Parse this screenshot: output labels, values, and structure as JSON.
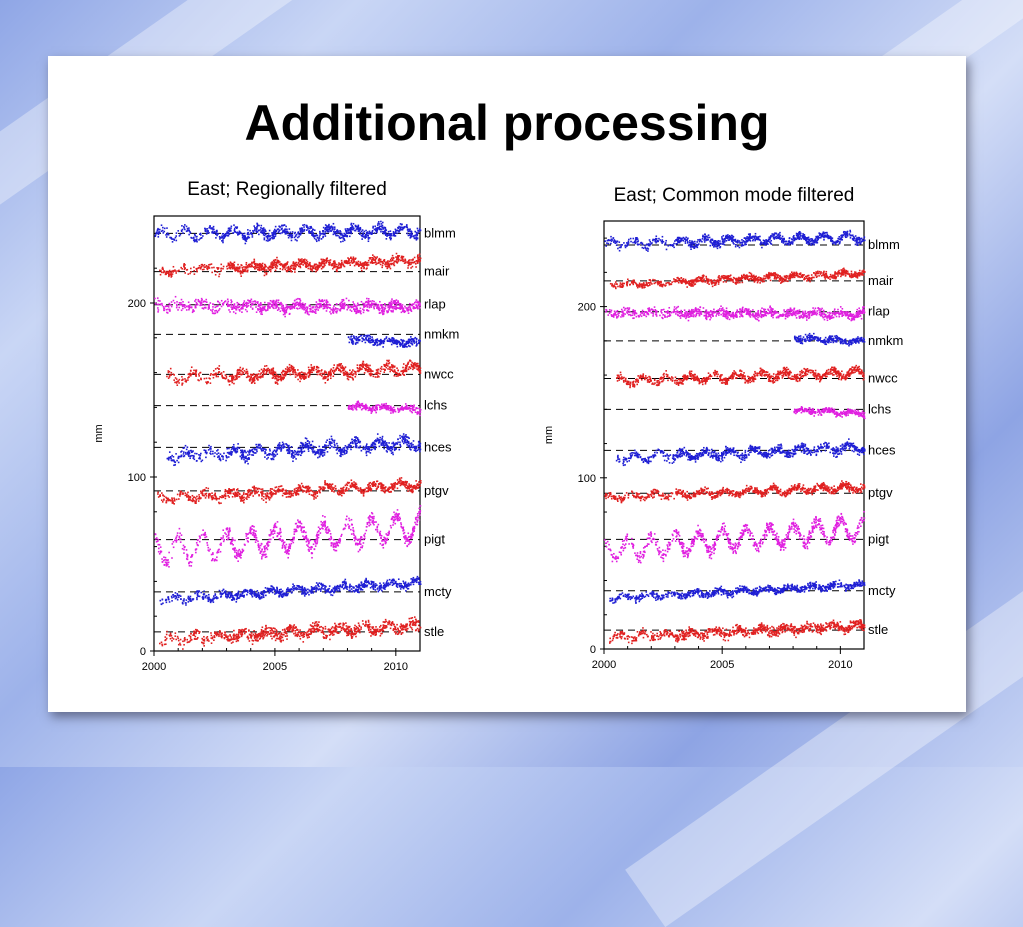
{
  "slide": {
    "title": "Additional processing"
  },
  "chart_data": [
    {
      "type": "scatter",
      "title": "East; Regionally filtered",
      "xlabel": "",
      "ylabel": "mm",
      "xlim": [
        2000,
        2011
      ],
      "ylim": [
        0,
        250
      ],
      "x_ticks": [
        "2000",
        "2005",
        "2010"
      ],
      "y_ticks": [
        "0",
        "100",
        "200"
      ],
      "grid": false,
      "legend": "station labels on right",
      "series": [
        {
          "name": "blmm",
          "color": "#1f1fd4",
          "offset": 240,
          "start": 2000.0,
          "end": 2011.0,
          "trend": 2,
          "seasonal": 2.5,
          "noise": 2.2
        },
        {
          "name": "mair",
          "color": "#e02020",
          "offset": 219,
          "start": 2000.2,
          "end": 2011.0,
          "trend": 6,
          "seasonal": 1.5,
          "noise": 2.0
        },
        {
          "name": "rlap",
          "color": "#e020e0",
          "offset": 199,
          "start": 2000.0,
          "end": 2011.0,
          "trend": -1,
          "seasonal": 1.5,
          "noise": 2.5
        },
        {
          "name": "nmkm",
          "color": "#1f1fd4",
          "offset": 180,
          "start": 2008.0,
          "end": 2011.0,
          "trend": -3,
          "seasonal": 1.0,
          "noise": 1.8
        },
        {
          "name": "nwcc",
          "color": "#e02020",
          "offset": 157,
          "start": 2000.5,
          "end": 2011.0,
          "trend": 6,
          "seasonal": 2.5,
          "noise": 2.2
        },
        {
          "name": "lchs",
          "color": "#e020e0",
          "offset": 141,
          "start": 2008.0,
          "end": 2011.0,
          "trend": -2,
          "seasonal": 1.0,
          "noise": 1.5
        },
        {
          "name": "hces",
          "color": "#1f1fd4",
          "offset": 112,
          "start": 2000.5,
          "end": 2011.0,
          "trend": 8,
          "seasonal": 2.5,
          "noise": 2.5
        },
        {
          "name": "ptgv",
          "color": "#e02020",
          "offset": 88,
          "start": 2000.0,
          "end": 2011.0,
          "trend": 8,
          "seasonal": 2.0,
          "noise": 2.0
        },
        {
          "name": "pigt",
          "color": "#e020e0",
          "offset": 58,
          "start": 2000.0,
          "end": 2011.0,
          "trend": 14,
          "seasonal": 7.0,
          "noise": 3.0
        },
        {
          "name": "mcty",
          "color": "#1f1fd4",
          "offset": 30,
          "start": 2000.2,
          "end": 2011.0,
          "trend": 10,
          "seasonal": 1.5,
          "noise": 1.8
        },
        {
          "name": "stle",
          "color": "#e02020",
          "offset": 7,
          "start": 2000.2,
          "end": 2011.0,
          "trend": 8,
          "seasonal": 2.0,
          "noise": 2.5
        }
      ],
      "reference_lines": [
        240,
        218,
        199,
        182,
        159,
        141,
        117,
        92,
        64,
        34,
        11
      ]
    },
    {
      "type": "scatter",
      "title": "East; Common mode filtered",
      "xlabel": "",
      "ylabel": "mm",
      "xlim": [
        2000,
        2011
      ],
      "ylim": [
        0,
        250
      ],
      "x_ticks": [
        "2000",
        "2005",
        "2010"
      ],
      "y_ticks": [
        "0",
        "100",
        "200"
      ],
      "grid": false,
      "legend": "station labels on right",
      "series": [
        {
          "name": "blmm",
          "color": "#1f1fd4",
          "offset": 237,
          "start": 2000.0,
          "end": 2011.0,
          "trend": 4,
          "seasonal": 2.0,
          "noise": 1.8
        },
        {
          "name": "mair",
          "color": "#e02020",
          "offset": 213,
          "start": 2000.2,
          "end": 2011.0,
          "trend": 7,
          "seasonal": 1.2,
          "noise": 1.5
        },
        {
          "name": "rlap",
          "color": "#e020e0",
          "offset": 197,
          "start": 2000.0,
          "end": 2011.0,
          "trend": -1,
          "seasonal": 1.2,
          "noise": 2.0
        },
        {
          "name": "nmkm",
          "color": "#1f1fd4",
          "offset": 182,
          "start": 2008.0,
          "end": 2011.0,
          "trend": -2,
          "seasonal": 1.0,
          "noise": 1.5
        },
        {
          "name": "nwcc",
          "color": "#e02020",
          "offset": 157,
          "start": 2000.5,
          "end": 2011.0,
          "trend": 5,
          "seasonal": 2.0,
          "noise": 1.8
        },
        {
          "name": "lchs",
          "color": "#e020e0",
          "offset": 140,
          "start": 2008.0,
          "end": 2011.0,
          "trend": -2,
          "seasonal": 1.0,
          "noise": 1.3
        },
        {
          "name": "hces",
          "color": "#1f1fd4",
          "offset": 112,
          "start": 2000.5,
          "end": 2011.0,
          "trend": 6,
          "seasonal": 2.0,
          "noise": 2.0
        },
        {
          "name": "ptgv",
          "color": "#e02020",
          "offset": 89,
          "start": 2000.0,
          "end": 2011.0,
          "trend": 6,
          "seasonal": 1.5,
          "noise": 1.6
        },
        {
          "name": "pigt",
          "color": "#e020e0",
          "offset": 58,
          "start": 2000.0,
          "end": 2011.0,
          "trend": 13,
          "seasonal": 6.0,
          "noise": 2.6
        },
        {
          "name": "mcty",
          "color": "#1f1fd4",
          "offset": 30,
          "start": 2000.2,
          "end": 2011.0,
          "trend": 8,
          "seasonal": 1.2,
          "noise": 1.5
        },
        {
          "name": "stle",
          "color": "#e02020",
          "offset": 7,
          "start": 2000.2,
          "end": 2011.0,
          "trend": 7,
          "seasonal": 1.5,
          "noise": 2.0
        }
      ],
      "reference_lines": [
        236,
        215,
        197,
        180,
        158,
        140,
        116,
        91,
        64,
        34,
        11
      ]
    }
  ]
}
